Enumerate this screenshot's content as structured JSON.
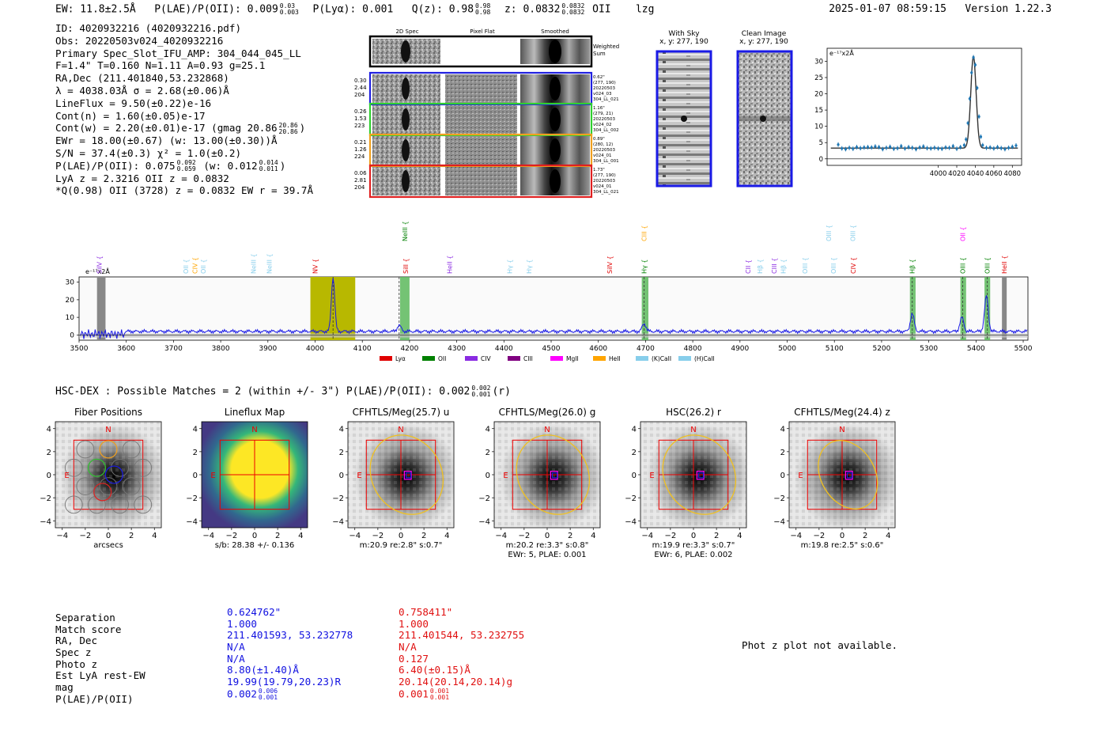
{
  "header": {
    "ew": "EW: 11.8±2.5Å",
    "plae_label": "P(LAE)/P(OII): 0.009",
    "plae_hi": "0.03",
    "plae_lo": "0.003",
    "plya": "P(Lyα): 0.001",
    "qz_label": "Q(z): 0.98",
    "qz_hi": "0.98",
    "qz_lo": "0.98",
    "z_label": "z: 0.0832",
    "z_hi": "0.0832",
    "z_lo": "0.0832",
    "z_line": "OII",
    "flag": "lzg",
    "timestamp": "2025-01-07 08:59:15",
    "version": "Version 1.22.3"
  },
  "info": {
    "id": "ID: 4020932216 (4020932216.pdf)",
    "obs": "Obs: 20220503v024_4020932216",
    "primary": "Primary Spec_Slot_IFU_AMP: 304_044_045_LL",
    "fwhm": "F=1.4\"  T=0.160  N=1.11  A=0.93  g=25.1",
    "radec": "RA,Dec (211.401840,53.232868)",
    "lambda": "λ = 4038.03Å  σ = 2.68(±0.06)Å",
    "lineflux": "LineFlux = 9.50(±0.22)e-16",
    "contn": "Cont(n) = 1.60(±0.05)e-17",
    "contw": "Cont(w) = 2.20(±0.01)e-17 (gmag 20.86",
    "contw_hi": "20.86",
    "contw_lo": "20.86",
    "contw_end": ")",
    "ewr": "EWr = 18.00(±0.67) (w: 13.00(±0.30))Å",
    "sn": "S/N = 37.4(±0.3)  χ² = 1.0(±0.2)",
    "plae_a": "P(LAE)/P(OII): 0.075",
    "plae_a_hi": "0.092",
    "plae_a_lo": "0.059",
    "plae_b": "(w: 0.012",
    "plae_b_hi": "0.014",
    "plae_b_lo": "0.011",
    "plae_b_end": ")",
    "lya": "LyA z = 2.3216  OII z = 0.0832",
    "q": "*Q(0.98) OII (3728) z = 0.0832  EW r = 39.7Å"
  },
  "spec2d": {
    "col_headers": [
      "2D Spec",
      "Pixel Flat",
      "Smoothed"
    ],
    "weighted_label": "Weighted Sum",
    "rows": [
      {
        "stats": [
          "0.30",
          "2.44",
          "204"
        ],
        "meta": [
          "0.62\"",
          "(277, 190)",
          "20220503",
          "v024_03",
          "304_LL_021"
        ],
        "color": "#2020e0"
      },
      {
        "stats": [
          "0.26",
          "1.53",
          "223"
        ],
        "meta": [
          "1.16\"",
          "(279, 21)",
          "20220503",
          "v024_02",
          "304_LL_002"
        ],
        "color": "#30d030"
      },
      {
        "stats": [
          "0.21",
          "1.26",
          "224"
        ],
        "meta": [
          "0.89\"",
          "(280, 12)",
          "20220503",
          "v024_01",
          "304_LL_001"
        ],
        "color": "#f0a020"
      },
      {
        "stats": [
          "0.06",
          "2.81",
          "204"
        ],
        "meta": [
          "1.73\"",
          "(277, 190)",
          "20220503",
          "v024_01",
          "304_LL_021"
        ],
        "color": "#e02020"
      }
    ]
  },
  "cutouts": {
    "sky_title": "With Sky",
    "sky_coord": "x, y: 277, 190",
    "clean_title": "Clean Image",
    "clean_coord": "x, y: 277, 190"
  },
  "colors": {
    "blue": "#1a1ae6",
    "red": "#e61a1a",
    "lya": "#e00000",
    "oii": "#008000",
    "civ": "#8a2be2",
    "ciii": "#800080",
    "mgii": "#ff00ff",
    "heii": "#ffa500",
    "kcaii": "#87ceeb",
    "hcaii": "#87ceeb",
    "fit_line": "#1f77b4",
    "highlight": "#b8b800"
  },
  "chart_data": [
    {
      "type": "line",
      "title": "",
      "ylabel": "e⁻¹⁷x2Å",
      "xlim": [
        3880,
        4090
      ],
      "ylim": [
        -2,
        34
      ],
      "xticks": [
        "4000",
        "4020",
        "4040",
        "4060",
        "4080"
      ],
      "xtick_values": [
        4000,
        4020,
        4040,
        4060,
        4080
      ],
      "yticks": [
        "0",
        "5",
        "10",
        "15",
        "20",
        "25",
        "30"
      ],
      "ytick_values": [
        0,
        5,
        10,
        15,
        20,
        25,
        30
      ],
      "fit_center": 4038.0,
      "fit_sigma": 2.9,
      "fit_amp": 28.2,
      "fit_cont": 3.3,
      "points": {
        "x": [
          3892,
          3896,
          3900,
          3904,
          3908,
          3912,
          3916,
          3920,
          3924,
          3928,
          3932,
          3936,
          3940,
          3944,
          3948,
          3952,
          3956,
          3960,
          3964,
          3968,
          3972,
          3976,
          3980,
          3984,
          3988,
          3992,
          3996,
          4000,
          4004,
          4008,
          4012,
          4016,
          4020,
          4024,
          4028,
          4030,
          4032,
          4034,
          4036,
          4038,
          4040,
          4042,
          4044,
          4046,
          4048,
          4052,
          4056,
          4060,
          4064,
          4068,
          4072,
          4076,
          4080,
          4084
        ],
        "y": [
          4.4,
          3.2,
          3.0,
          3.4,
          3.1,
          3.6,
          3.3,
          3.5,
          3.6,
          3.5,
          3.8,
          3.6,
          3.0,
          3.4,
          3.7,
          3.1,
          3.3,
          3.9,
          3.2,
          3.6,
          3.4,
          3.0,
          3.5,
          3.8,
          3.3,
          3.2,
          3.4,
          3.2,
          3.1,
          3.5,
          3.4,
          3.9,
          3.1,
          3.6,
          4.2,
          6.0,
          11.0,
          18.5,
          26.5,
          31.2,
          28.9,
          21.8,
          13.0,
          6.8,
          4.2,
          3.4,
          3.5,
          3.2,
          3.6,
          3.3,
          3.0,
          3.4,
          3.7,
          4.1
        ]
      }
    },
    {
      "type": "line",
      "title": "",
      "ylabel": "e⁻¹⁷x2Å",
      "xlim": [
        3500,
        5510
      ],
      "ylim": [
        -3,
        33
      ],
      "xticks": [
        "3500",
        "3600",
        "3700",
        "3800",
        "3900",
        "4000",
        "4100",
        "4200",
        "4300",
        "4400",
        "4500",
        "4600",
        "4700",
        "4800",
        "4900",
        "5000",
        "5100",
        "5200",
        "5300",
        "5400",
        "5500"
      ],
      "xtick_values": [
        3500,
        3600,
        3700,
        3800,
        3900,
        4000,
        4100,
        4200,
        4300,
        4400,
        4500,
        4600,
        4700,
        4800,
        4900,
        5000,
        5100,
        5200,
        5300,
        5400,
        5500
      ],
      "yticks": [
        "0",
        "10",
        "20",
        "30"
      ],
      "ytick_values": [
        0,
        10,
        20,
        30
      ],
      "continuum": 2.0,
      "features": [
        {
          "center": 4038,
          "amp": 31,
          "sigma": 3.5
        },
        {
          "center": 4178,
          "amp": 3.5,
          "sigma": 4
        },
        {
          "center": 4697,
          "amp": 4.5,
          "sigma": 4
        },
        {
          "center": 5265,
          "amp": 10,
          "sigma": 4
        },
        {
          "center": 5370,
          "amp": 8,
          "sigma": 4
        },
        {
          "center": 5422,
          "amp": 20,
          "sigma": 4
        }
      ],
      "highlight_band": [
        3990,
        4085
      ],
      "green_bands": [
        [
          4180,
          4200
        ],
        [
          4692,
          4706
        ],
        [
          5260,
          5272
        ],
        [
          5367,
          5379
        ],
        [
          5418,
          5430
        ]
      ],
      "gray_bands": [
        [
          3538,
          3556
        ],
        [
          5455,
          5465
        ]
      ],
      "line_labels": [
        {
          "text": "SiIV",
          "x": 3543,
          "color": "#8a2be2",
          "row": 2
        },
        {
          "text": "OII",
          "x": 3726,
          "color": "#87ceeb",
          "row": 2
        },
        {
          "text": "CIV",
          "x": 3745,
          "color": "#ffa500",
          "row": 2
        },
        {
          "text": "OII",
          "x": 3763,
          "color": "#87ceeb",
          "row": 2
        },
        {
          "text": "NeIII",
          "x": 3869,
          "color": "#87ceeb",
          "row": 2
        },
        {
          "text": "NeIII",
          "x": 3903,
          "color": "#87ceeb",
          "row": 2
        },
        {
          "text": "NV",
          "x": 4000,
          "color": "#e00000",
          "row": 2
        },
        {
          "text": "NeIII",
          "x": 4190,
          "color": "#008000",
          "row": 1
        },
        {
          "text": "SiII",
          "x": 4192,
          "color": "#e00000",
          "row": 2
        },
        {
          "text": "HeII",
          "x": 4285,
          "color": "#8a2be2",
          "row": 2
        },
        {
          "text": "Hγ",
          "x": 4412,
          "color": "#87ceeb",
          "row": 2
        },
        {
          "text": "Hγ",
          "x": 4453,
          "color": "#87ceeb",
          "row": 2
        },
        {
          "text": "SiIV",
          "x": 4624,
          "color": "#e00000",
          "row": 2
        },
        {
          "text": "Hγ",
          "x": 4697,
          "color": "#008000",
          "row": 2
        },
        {
          "text": "CIII",
          "x": 4697,
          "color": "#ffa500",
          "row": 1
        },
        {
          "text": "CII",
          "x": 4917,
          "color": "#8a2be2",
          "row": 2
        },
        {
          "text": "Hβ",
          "x": 4942,
          "color": "#87ceeb",
          "row": 2
        },
        {
          "text": "CIII",
          "x": 4972,
          "color": "#8a2be2",
          "row": 2
        },
        {
          "text": "Hβ",
          "x": 4992,
          "color": "#87ceeb",
          "row": 2
        },
        {
          "text": "OIII",
          "x": 5038,
          "color": "#87ceeb",
          "row": 2
        },
        {
          "text": "OIII",
          "x": 5088,
          "color": "#87ceeb",
          "row": 1
        },
        {
          "text": "OIII",
          "x": 5098,
          "color": "#87ceeb",
          "row": 2
        },
        {
          "text": "OIII",
          "x": 5139,
          "color": "#87ceeb",
          "row": 1
        },
        {
          "text": "CIV",
          "x": 5140,
          "color": "#e00000",
          "row": 2
        },
        {
          "text": "Hβ",
          "x": 5265,
          "color": "#008000",
          "row": 2
        },
        {
          "text": "OIII",
          "x": 5372,
          "color": "#008000",
          "row": 2
        },
        {
          "text": "OII",
          "x": 5372,
          "color": "#ff00ff",
          "row": 1
        },
        {
          "text": "OIII",
          "x": 5424,
          "color": "#008000",
          "row": 2
        },
        {
          "text": "HeII",
          "x": 5460,
          "color": "#e00000",
          "row": 2
        }
      ],
      "legend": [
        {
          "label": "Lyα",
          "color": "#e00000"
        },
        {
          "label": "OII",
          "color": "#008000"
        },
        {
          "label": "CIV",
          "color": "#8a2be2"
        },
        {
          "label": "CIII",
          "color": "#800080"
        },
        {
          "label": "MgII",
          "color": "#ff00ff"
        },
        {
          "label": "HeII",
          "color": "#ffa500"
        },
        {
          "label": "(K)CaII",
          "color": "#87ceeb"
        },
        {
          "label": "(H)CaII",
          "color": "#87ceeb"
        }
      ]
    }
  ],
  "hsc": {
    "title": "HSC-DEX : Possible Matches = 2 (within +/- 3\")  P(LAE)/P(OII): 0.002",
    "plae_hi": "0.002",
    "plae_lo": "0.001",
    "band": "(r)"
  },
  "imaging": {
    "ticks": [
      "−4",
      "−2",
      "0",
      "2",
      "4"
    ],
    "yticks": [
      "4",
      "2",
      "0",
      "−2",
      "−4"
    ],
    "compass_n": "N",
    "compass_e": "E",
    "panels": [
      {
        "title": "Fiber Positions",
        "caption": "arcsecs",
        "caption2": "",
        "kind": "fiber"
      },
      {
        "title": "Lineflux Map",
        "caption": "s/b: 28.38 +/- 0.136",
        "caption2": "",
        "kind": "flux"
      },
      {
        "title": "CFHTLS/Meg(25.7) u",
        "caption": "m:20.9  re:2.8\"  s:0.7\"",
        "caption2": "",
        "kind": "image"
      },
      {
        "title": "CFHTLS/Meg(26.0) g",
        "caption": "m:20.2  re:3.3\"  s:0.8\"",
        "caption2": "EWr: 5, PLAE: 0.001",
        "kind": "image"
      },
      {
        "title": "HSC(26.2) r",
        "caption": "m:19.9  re:3.3\"  s:0.7\"",
        "caption2": "EWr: 6, PLAE: 0.002",
        "kind": "image"
      },
      {
        "title": "CFHTLS/Meg(24.4) z",
        "caption": "m:19.8  re:2.5\"  s:0.6\"",
        "caption2": "",
        "kind": "image"
      }
    ]
  },
  "matches": {
    "labels": [
      "Separation",
      "Match score",
      "RA, Dec",
      "Spec z",
      "Photo z",
      "Est LyA rest-EW",
      "mag",
      "P(LAE)/P(OII)"
    ],
    "blue": {
      "values": [
        "0.624762\"",
        "1.000",
        "211.401593, 53.232778",
        "N/A",
        "N/A",
        "8.80(±1.40)Å",
        "19.99(19.79,20.23)R"
      ],
      "plae": "0.002",
      "plae_hi": "0.006",
      "plae_lo": "0.001"
    },
    "red": {
      "values": [
        "0.758411\"",
        "1.000",
        "211.401544, 53.232755",
        "N/A",
        "0.127",
        "6.40(±0.15)Å",
        "20.14(20.14,20.14)g"
      ],
      "plae": "0.001",
      "plae_hi": "0.001",
      "plae_lo": "0.001"
    },
    "photz_note": "Phot z plot not available."
  }
}
